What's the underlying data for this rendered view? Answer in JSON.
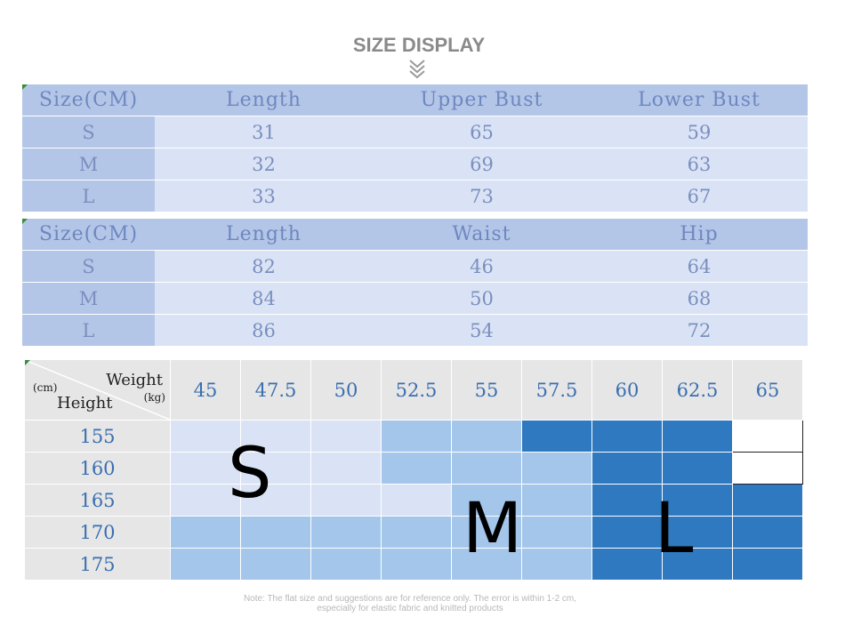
{
  "title": "SIZE DISPLAY",
  "icons": {
    "chevron": "double-chevron-down-icon"
  },
  "top_table": {
    "headers": [
      "Size(CM)",
      "Length",
      "Upper Bust",
      "Lower Bust"
    ],
    "rows": [
      [
        "S",
        "31",
        "65",
        "59"
      ],
      [
        "M",
        "32",
        "69",
        "63"
      ],
      [
        "L",
        "33",
        "73",
        "67"
      ]
    ]
  },
  "bottom_table": {
    "headers": [
      "Size(CM)",
      "Length",
      "Waist",
      "Hip"
    ],
    "rows": [
      [
        "S",
        "82",
        "46",
        "64"
      ],
      [
        "M",
        "84",
        "50",
        "68"
      ],
      [
        "L",
        "86",
        "54",
        "72"
      ]
    ]
  },
  "grid": {
    "corner": {
      "weight": "Weight",
      "kg": "(kg)",
      "cm": "(cm)",
      "height": "Height"
    },
    "weights": [
      "45",
      "47.5",
      "50",
      "52.5",
      "55",
      "57.5",
      "60",
      "62.5",
      "65"
    ],
    "heights": [
      "155",
      "160",
      "165",
      "170",
      "175"
    ],
    "cells": [
      [
        "S",
        "S",
        "S",
        "M",
        "M",
        "L",
        "L",
        "L",
        "none"
      ],
      [
        "S",
        "S",
        "S",
        "M",
        "M",
        "M",
        "L",
        "L",
        "none"
      ],
      [
        "S",
        "S",
        "S",
        "S",
        "M",
        "M",
        "L",
        "L",
        "L"
      ],
      [
        "M",
        "M",
        "M",
        "M",
        "M",
        "M",
        "L",
        "L",
        "L"
      ],
      [
        "M",
        "M",
        "M",
        "M",
        "M",
        "M",
        "L",
        "L",
        "L"
      ]
    ],
    "colors": {
      "S": "#dae3f5",
      "M": "#a3c6ea",
      "L": "#2e79c0",
      "none": "#ffffff"
    },
    "labels": {
      "S": "S",
      "M": "M",
      "L": "L"
    }
  },
  "note": {
    "line1": "Note: The flat size and suggestions are for reference only. The error is within 1-2 cm,",
    "line2": "especially for elastic fabric and knitted products"
  }
}
